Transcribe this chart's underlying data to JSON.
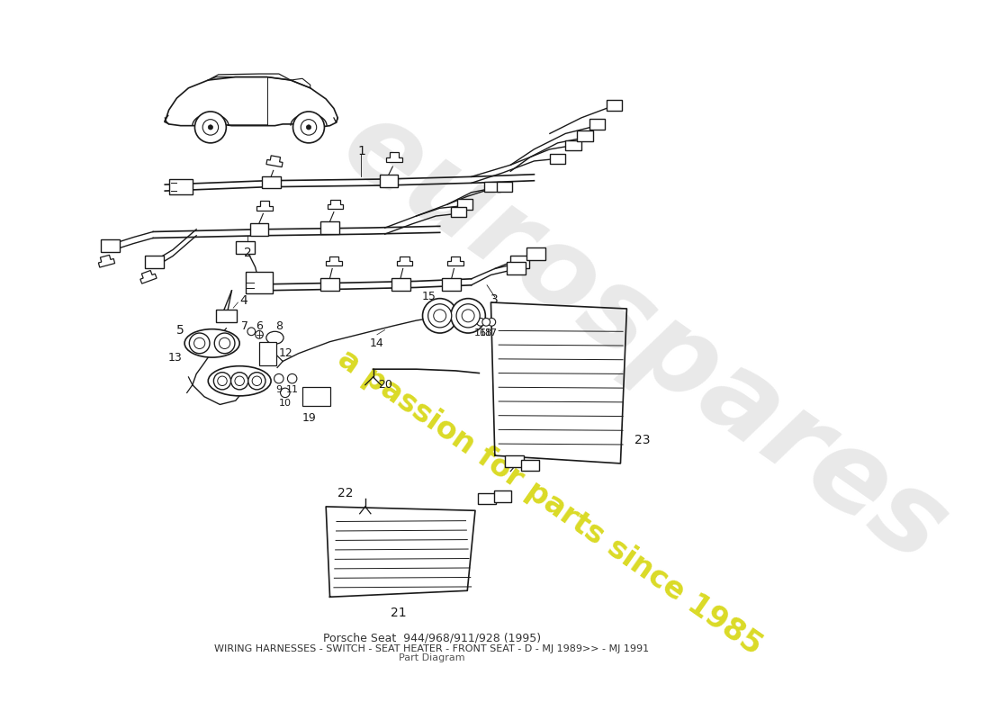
{
  "bg_color": "#ffffff",
  "line_color": "#1a1a1a",
  "wm_color": "#e0e0e0",
  "wm_yellow": "#d4d400",
  "title_lines": [
    "Porsche Seat  944/968/911/928 (1995)",
    "WIRING HARNESSES - SWITCH - SEAT HEATER - FRONT SEAT - D - MJ 1989>> - MJ 1991",
    "Part Diagram"
  ]
}
